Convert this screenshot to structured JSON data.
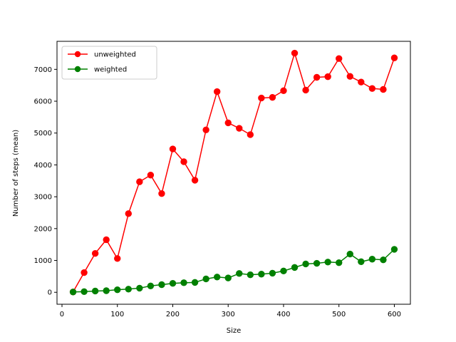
{
  "chart_data": {
    "type": "line",
    "title": "",
    "xlabel": "Size",
    "ylabel": "Number of steps (mean)",
    "xlim": [
      -9,
      629
    ],
    "ylim": [
      -375,
      7880
    ],
    "xticks": [
      0,
      100,
      200,
      300,
      400,
      500,
      600
    ],
    "yticks": [
      0,
      1000,
      2000,
      3000,
      4000,
      5000,
      6000,
      7000
    ],
    "grid": false,
    "legend_position": "upper left",
    "x": [
      20,
      40,
      60,
      80,
      100,
      120,
      140,
      160,
      180,
      200,
      220,
      240,
      260,
      280,
      300,
      320,
      340,
      360,
      380,
      400,
      420,
      440,
      460,
      480,
      500,
      520,
      540,
      560,
      580,
      600
    ],
    "series": [
      {
        "name": "unweighted",
        "color": "#ff0000",
        "marker": "circle",
        "values": [
          10,
          620,
          1220,
          1650,
          1060,
          2470,
          3470,
          3680,
          3100,
          4500,
          4100,
          3520,
          5100,
          6300,
          5320,
          5150,
          4950,
          6100,
          6120,
          6330,
          7510,
          6350,
          6750,
          6770,
          7340,
          6780,
          6600,
          6400,
          6370,
          7360
        ]
      },
      {
        "name": "weighted",
        "color": "#008000",
        "marker": "circle",
        "values": [
          10,
          20,
          40,
          50,
          80,
          100,
          130,
          200,
          240,
          280,
          300,
          310,
          420,
          480,
          450,
          590,
          550,
          570,
          600,
          670,
          780,
          890,
          910,
          950,
          930,
          1200,
          960,
          1040,
          1020,
          1350
        ]
      }
    ]
  }
}
